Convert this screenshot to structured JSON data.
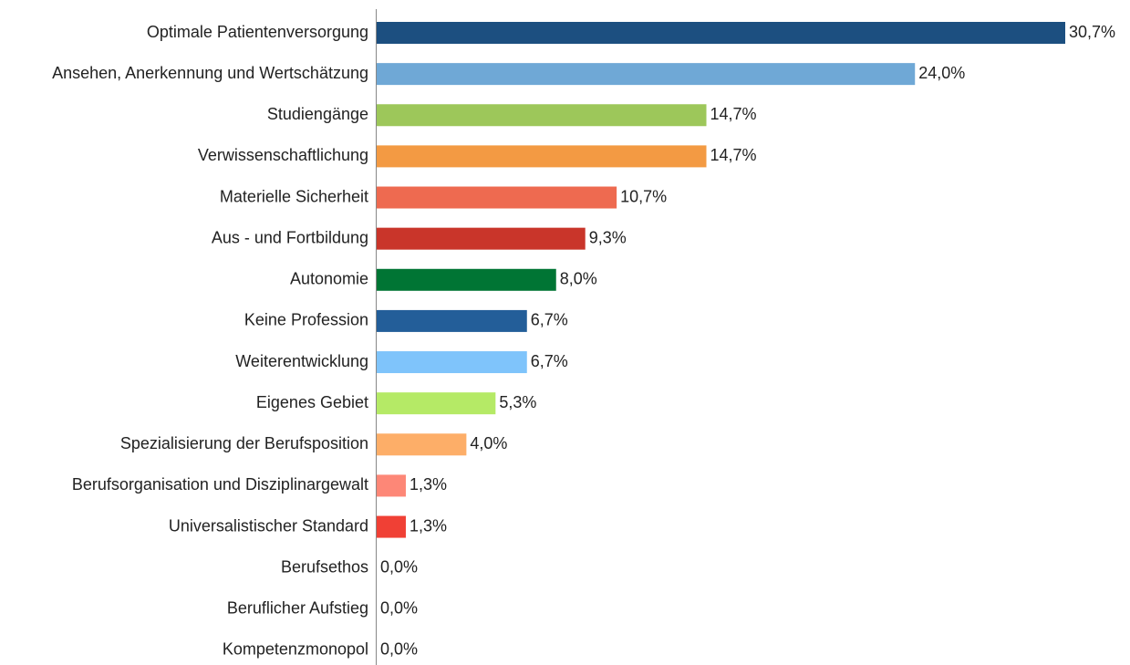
{
  "chart_data": {
    "type": "hbar",
    "categories": [
      "Optimale Patientenversorgung",
      "Ansehen, Anerkennung und Wertschätzung",
      "Studiengänge",
      "Verwissenschaftlichung",
      "Materielle Sicherheit",
      "Aus - und Fortbildung",
      "Autonomie",
      "Keine Profession",
      "Weiterentwicklung",
      "Eigenes Gebiet",
      "Spezialisierung der Berufsposition",
      "Berufsorganisation und Disziplinargewalt",
      "Universalistischer Standard",
      "Berufsethos",
      "Beruflicher Aufstieg",
      "Kompetenzmonopol"
    ],
    "values": [
      30.7,
      24.0,
      14.7,
      14.7,
      10.7,
      9.3,
      8.0,
      6.7,
      6.7,
      5.3,
      4.0,
      1.3,
      1.3,
      0.0,
      0.0,
      0.0
    ],
    "value_labels": [
      "30,7%",
      "24,0%",
      "14,7%",
      "14,7%",
      "10,7%",
      "9,3%",
      "8,0%",
      "6,7%",
      "6,7%",
      "5,3%",
      "4,0%",
      "1,3%",
      "1,3%",
      "0,0%",
      "0,0%",
      "0,0%"
    ],
    "colors": [
      "#1c4f80",
      "#6fa8d6",
      "#9dc75a",
      "#f39a43",
      "#ee6a50",
      "#c9352a",
      "#007534",
      "#235e99",
      "#7fc4fb",
      "#b5ea66",
      "#fdae68",
      "#fd8777",
      "#f04035",
      null,
      null,
      null
    ]
  }
}
